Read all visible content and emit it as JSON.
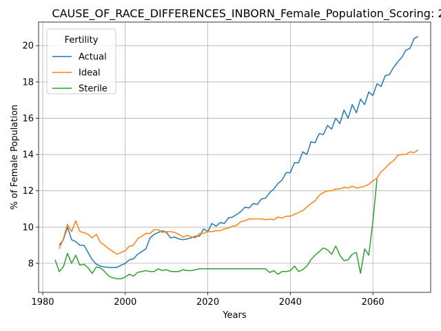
{
  "chart_data": {
    "type": "line",
    "title": "CAUSE_OF_RACE_DIFFERENCES_INBORN_Female_Population_Scoring: 2",
    "xlabel": "Years",
    "ylabel": "% of Female Population",
    "xlim": [
      1979,
      2074
    ],
    "ylim": [
      6.4,
      21.3
    ],
    "xticks": [
      1980,
      2000,
      2020,
      2040,
      2060
    ],
    "yticks": [
      8,
      10,
      12,
      14,
      16,
      18,
      20
    ],
    "grid": true,
    "legend": {
      "title": "Fertility",
      "placement": "top-left"
    },
    "series": [
      {
        "name": "Actual",
        "color": "#1f77b4",
        "points": [
          [
            1984,
            9.0
          ],
          [
            1985,
            9.3
          ],
          [
            1986,
            10.0
          ],
          [
            1987,
            9.3
          ],
          [
            1988,
            9.2
          ],
          [
            1989,
            9.0
          ],
          [
            1990,
            9.0
          ],
          [
            1991,
            8.6
          ],
          [
            1992,
            8.2
          ],
          [
            1993,
            7.95
          ],
          [
            1994,
            7.85
          ],
          [
            1995,
            7.8
          ],
          [
            1996,
            7.78
          ],
          [
            1997,
            7.78
          ],
          [
            1998,
            7.78
          ],
          [
            1999,
            7.9
          ],
          [
            2000,
            8.0
          ],
          [
            2001,
            8.2
          ],
          [
            2002,
            8.25
          ],
          [
            2003,
            8.5
          ],
          [
            2004,
            8.65
          ],
          [
            2005,
            8.8
          ],
          [
            2006,
            9.4
          ],
          [
            2007,
            9.6
          ],
          [
            2008,
            9.7
          ],
          [
            2009,
            9.8
          ],
          [
            2010,
            9.7
          ],
          [
            2011,
            9.4
          ],
          [
            2012,
            9.45
          ],
          [
            2013,
            9.35
          ],
          [
            2014,
            9.3
          ],
          [
            2015,
            9.35
          ],
          [
            2016,
            9.4
          ],
          [
            2017,
            9.5
          ],
          [
            2018,
            9.5
          ],
          [
            2019,
            9.9
          ],
          [
            2020,
            9.75
          ],
          [
            2021,
            10.2
          ],
          [
            2022,
            10.05
          ],
          [
            2023,
            10.25
          ],
          [
            2024,
            10.2
          ],
          [
            2025,
            10.5
          ],
          [
            2026,
            10.55
          ],
          [
            2027,
            10.7
          ],
          [
            2028,
            10.85
          ],
          [
            2029,
            11.1
          ],
          [
            2030,
            11.05
          ],
          [
            2031,
            11.3
          ],
          [
            2032,
            11.25
          ],
          [
            2033,
            11.55
          ],
          [
            2034,
            11.6
          ],
          [
            2035,
            11.9
          ],
          [
            2036,
            12.1
          ],
          [
            2037,
            12.4
          ],
          [
            2038,
            12.6
          ],
          [
            2039,
            13.0
          ],
          [
            2040,
            13.0
          ],
          [
            2041,
            13.55
          ],
          [
            2042,
            13.55
          ],
          [
            2043,
            14.15
          ],
          [
            2044,
            14.0
          ],
          [
            2045,
            14.7
          ],
          [
            2046,
            14.65
          ],
          [
            2047,
            15.15
          ],
          [
            2048,
            15.1
          ],
          [
            2049,
            15.6
          ],
          [
            2050,
            15.4
          ],
          [
            2051,
            16.0
          ],
          [
            2052,
            15.7
          ],
          [
            2053,
            16.45
          ],
          [
            2054,
            16.0
          ],
          [
            2055,
            16.75
          ],
          [
            2056,
            16.3
          ],
          [
            2057,
            17.05
          ],
          [
            2058,
            16.75
          ],
          [
            2059,
            17.45
          ],
          [
            2060,
            17.25
          ],
          [
            2061,
            17.9
          ],
          [
            2062,
            17.75
          ],
          [
            2063,
            18.35
          ],
          [
            2064,
            18.4
          ],
          [
            2065,
            18.8
          ],
          [
            2066,
            19.1
          ],
          [
            2067,
            19.35
          ],
          [
            2068,
            19.75
          ],
          [
            2069,
            19.85
          ],
          [
            2070,
            20.4
          ],
          [
            2071,
            20.5
          ]
        ]
      },
      {
        "name": "Ideal",
        "color": "#ff7f0e",
        "points": [
          [
            1984,
            8.8
          ],
          [
            1985,
            9.35
          ],
          [
            1986,
            10.15
          ],
          [
            1987,
            9.75
          ],
          [
            1988,
            10.35
          ],
          [
            1989,
            9.75
          ],
          [
            1990,
            9.7
          ],
          [
            1991,
            9.6
          ],
          [
            1992,
            9.4
          ],
          [
            1993,
            9.6
          ],
          [
            1994,
            9.15
          ],
          [
            1995,
            9.0
          ],
          [
            1996,
            8.8
          ],
          [
            1997,
            8.65
          ],
          [
            1998,
            8.5
          ],
          [
            1999,
            8.6
          ],
          [
            2000,
            8.7
          ],
          [
            2001,
            8.95
          ],
          [
            2002,
            9.0
          ],
          [
            2003,
            9.35
          ],
          [
            2004,
            9.5
          ],
          [
            2005,
            9.65
          ],
          [
            2006,
            9.65
          ],
          [
            2007,
            9.85
          ],
          [
            2008,
            9.85
          ],
          [
            2009,
            9.7
          ],
          [
            2010,
            9.75
          ],
          [
            2011,
            9.75
          ],
          [
            2012,
            9.7
          ],
          [
            2013,
            9.6
          ],
          [
            2014,
            9.45
          ],
          [
            2015,
            9.55
          ],
          [
            2016,
            9.45
          ],
          [
            2017,
            9.4
          ],
          [
            2018,
            9.65
          ],
          [
            2019,
            9.65
          ],
          [
            2020,
            9.75
          ],
          [
            2021,
            9.75
          ],
          [
            2022,
            9.8
          ],
          [
            2023,
            9.8
          ],
          [
            2024,
            9.9
          ],
          [
            2025,
            9.95
          ],
          [
            2026,
            10.05
          ],
          [
            2027,
            10.1
          ],
          [
            2028,
            10.3
          ],
          [
            2029,
            10.35
          ],
          [
            2030,
            10.45
          ],
          [
            2031,
            10.45
          ],
          [
            2032,
            10.45
          ],
          [
            2033,
            10.45
          ],
          [
            2034,
            10.4
          ],
          [
            2035,
            10.45
          ],
          [
            2036,
            10.4
          ],
          [
            2037,
            10.55
          ],
          [
            2038,
            10.5
          ],
          [
            2039,
            10.6
          ],
          [
            2040,
            10.6
          ],
          [
            2041,
            10.7
          ],
          [
            2042,
            10.8
          ],
          [
            2043,
            10.9
          ],
          [
            2044,
            11.1
          ],
          [
            2045,
            11.3
          ],
          [
            2046,
            11.45
          ],
          [
            2047,
            11.75
          ],
          [
            2048,
            11.9
          ],
          [
            2049,
            12.0
          ],
          [
            2050,
            12.0
          ],
          [
            2051,
            12.1
          ],
          [
            2052,
            12.1
          ],
          [
            2053,
            12.2
          ],
          [
            2054,
            12.15
          ],
          [
            2055,
            12.25
          ],
          [
            2056,
            12.15
          ],
          [
            2057,
            12.2
          ],
          [
            2058,
            12.25
          ],
          [
            2059,
            12.35
          ],
          [
            2060,
            12.55
          ],
          [
            2061,
            12.7
          ],
          [
            2062,
            13.05
          ],
          [
            2063,
            13.25
          ],
          [
            2064,
            13.5
          ],
          [
            2065,
            13.65
          ],
          [
            2066,
            13.95
          ],
          [
            2067,
            14.0
          ],
          [
            2068,
            14.0
          ],
          [
            2069,
            14.15
          ],
          [
            2070,
            14.1
          ],
          [
            2071,
            14.25
          ]
        ]
      },
      {
        "name": "Sterile",
        "color": "#2ca02c",
        "points": [
          [
            1983,
            8.2
          ],
          [
            1984,
            7.55
          ],
          [
            1985,
            7.8
          ],
          [
            1986,
            8.55
          ],
          [
            1987,
            8.0
          ],
          [
            1988,
            8.45
          ],
          [
            1989,
            7.9
          ],
          [
            1990,
            7.95
          ],
          [
            1991,
            7.75
          ],
          [
            1992,
            7.45
          ],
          [
            1993,
            7.8
          ],
          [
            1994,
            7.75
          ],
          [
            1995,
            7.55
          ],
          [
            1996,
            7.3
          ],
          [
            1997,
            7.2
          ],
          [
            1998,
            7.15
          ],
          [
            1999,
            7.15
          ],
          [
            2000,
            7.25
          ],
          [
            2001,
            7.4
          ],
          [
            2002,
            7.3
          ],
          [
            2003,
            7.5
          ],
          [
            2004,
            7.55
          ],
          [
            2005,
            7.6
          ],
          [
            2006,
            7.55
          ],
          [
            2007,
            7.55
          ],
          [
            2008,
            7.7
          ],
          [
            2009,
            7.6
          ],
          [
            2010,
            7.65
          ],
          [
            2011,
            7.55
          ],
          [
            2012,
            7.55
          ],
          [
            2013,
            7.55
          ],
          [
            2014,
            7.65
          ],
          [
            2015,
            7.6
          ],
          [
            2016,
            7.6
          ],
          [
            2017,
            7.65
          ],
          [
            2018,
            7.7
          ],
          [
            2019,
            7.7
          ],
          [
            2020,
            7.7
          ],
          [
            2021,
            7.7
          ],
          [
            2022,
            7.7
          ],
          [
            2023,
            7.7
          ],
          [
            2024,
            7.7
          ],
          [
            2025,
            7.7
          ],
          [
            2026,
            7.7
          ],
          [
            2027,
            7.7
          ],
          [
            2028,
            7.7
          ],
          [
            2029,
            7.7
          ],
          [
            2030,
            7.7
          ],
          [
            2031,
            7.7
          ],
          [
            2032,
            7.7
          ],
          [
            2033,
            7.7
          ],
          [
            2034,
            7.7
          ],
          [
            2035,
            7.5
          ],
          [
            2036,
            7.6
          ],
          [
            2037,
            7.4
          ],
          [
            2038,
            7.55
          ],
          [
            2039,
            7.55
          ],
          [
            2040,
            7.6
          ],
          [
            2041,
            7.85
          ],
          [
            2042,
            7.55
          ],
          [
            2043,
            7.65
          ],
          [
            2044,
            7.85
          ],
          [
            2045,
            8.2
          ],
          [
            2046,
            8.45
          ],
          [
            2047,
            8.65
          ],
          [
            2048,
            8.85
          ],
          [
            2049,
            8.75
          ],
          [
            2050,
            8.5
          ],
          [
            2051,
            8.95
          ],
          [
            2052,
            8.45
          ],
          [
            2053,
            8.15
          ],
          [
            2054,
            8.2
          ],
          [
            2055,
            8.5
          ],
          [
            2056,
            8.6
          ],
          [
            2057,
            7.45
          ],
          [
            2058,
            8.8
          ],
          [
            2059,
            8.45
          ],
          [
            2060,
            10.3
          ],
          [
            2061,
            12.65
          ]
        ]
      }
    ]
  }
}
